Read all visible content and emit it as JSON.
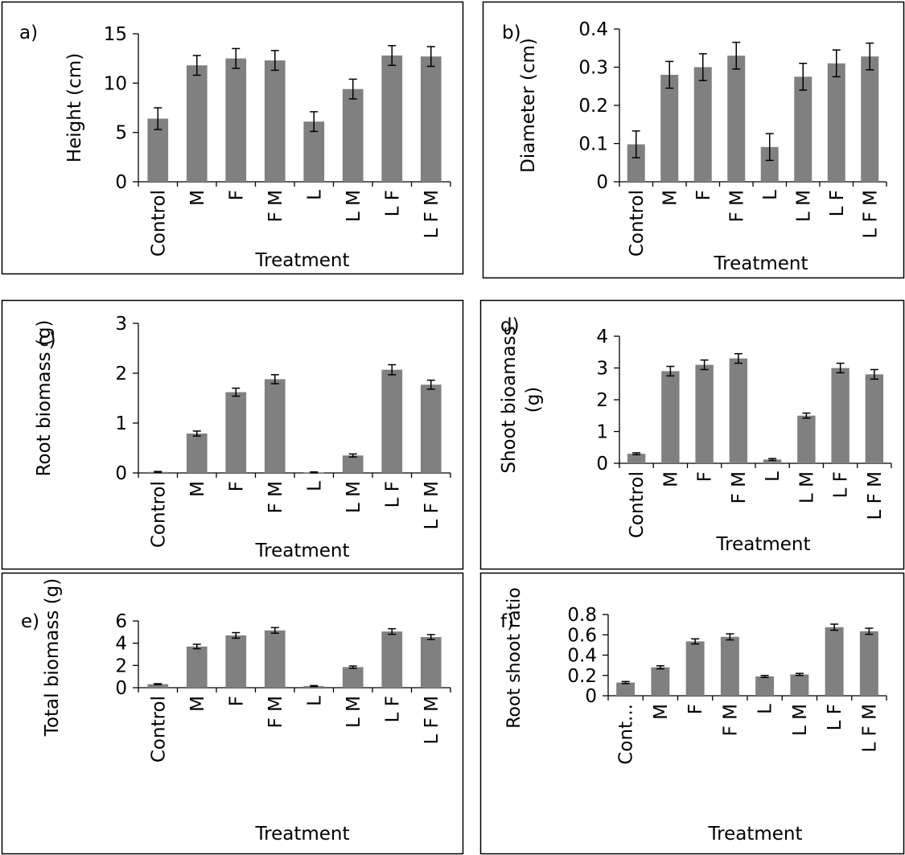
{
  "chart_data": [
    {
      "type": "bar",
      "panel_label": "a)",
      "categories": [
        "Control",
        "M",
        "F",
        "F M",
        "L",
        "L M",
        "L F",
        "L F M"
      ],
      "values": [
        6.4,
        11.8,
        12.5,
        12.3,
        6.1,
        9.4,
        12.8,
        12.7
      ],
      "errors": [
        1.1,
        1.0,
        1.0,
        1.0,
        1.0,
        1.0,
        1.0,
        1.0
      ],
      "ylabel": "Height (cm)",
      "xlabel": "Treatment",
      "ylim": [
        0,
        15
      ],
      "yticks": [
        "0",
        "5",
        "10",
        "15"
      ],
      "ytick_values": [
        0,
        5,
        10,
        15
      ],
      "bar_color": "#808080",
      "grid": false
    },
    {
      "type": "bar",
      "panel_label": "b)",
      "categories": [
        "Control",
        "M",
        "F",
        "F M",
        "L",
        "L M",
        "L F",
        "L F M"
      ],
      "values": [
        0.098,
        0.28,
        0.3,
        0.33,
        0.091,
        0.275,
        0.31,
        0.328
      ],
      "errors": [
        0.035,
        0.035,
        0.035,
        0.035,
        0.035,
        0.035,
        0.035,
        0.035
      ],
      "ylabel": "Diameter (cm)",
      "xlabel": "Treatment",
      "ylim": [
        0,
        0.4
      ],
      "yticks": [
        "0",
        "0.1",
        "0.2",
        "0.3",
        "0.4"
      ],
      "ytick_values": [
        0,
        0.1,
        0.2,
        0.3,
        0.4
      ],
      "bar_color": "#808080",
      "grid": false
    },
    {
      "type": "bar",
      "panel_label": "c)",
      "categories": [
        "Control",
        "M",
        "F",
        "F M",
        "L",
        "L M",
        "L F",
        "L F M"
      ],
      "values": [
        0.02,
        0.79,
        1.62,
        1.88,
        0.01,
        0.35,
        2.07,
        1.77
      ],
      "errors": [
        0.01,
        0.05,
        0.08,
        0.09,
        0.01,
        0.03,
        0.1,
        0.09
      ],
      "ylabel": "Root biomass (g)",
      "xlabel": "Treatment",
      "ylim": [
        0,
        3
      ],
      "yticks": [
        "0",
        "1",
        "2",
        "3"
      ],
      "ytick_values": [
        0,
        1,
        2,
        3
      ],
      "bar_color": "#808080",
      "grid": false
    },
    {
      "type": "bar",
      "panel_label": "d)",
      "categories": [
        "Control",
        "M",
        "F",
        "F M",
        "L",
        "L M",
        "L F",
        "L F M"
      ],
      "values": [
        0.3,
        2.9,
        3.1,
        3.3,
        0.12,
        1.5,
        3.0,
        2.8
      ],
      "errors": [
        0.03,
        0.15,
        0.15,
        0.15,
        0.03,
        0.08,
        0.15,
        0.15
      ],
      "ylabel": "Shoot bioamass (g)",
      "ylabel_lines": [
        "Shoot bioamass",
        "(g)"
      ],
      "xlabel": "Treatment",
      "ylim": [
        0,
        4
      ],
      "yticks": [
        "0",
        "1",
        "2",
        "3",
        "4"
      ],
      "ytick_values": [
        0,
        1,
        2,
        3,
        4
      ],
      "bar_color": "#808080",
      "grid": false
    },
    {
      "type": "bar",
      "panel_label": "e)",
      "categories": [
        "Control",
        "M",
        "F",
        "F M",
        "L",
        "L M",
        "L F",
        "L F M"
      ],
      "values": [
        0.32,
        3.7,
        4.7,
        5.15,
        0.15,
        1.85,
        5.05,
        4.55
      ],
      "errors": [
        0.04,
        0.2,
        0.25,
        0.25,
        0.04,
        0.1,
        0.25,
        0.22
      ],
      "ylabel": "Total biomass (g)",
      "xlabel": "Treatment",
      "ylim": [
        0,
        6
      ],
      "yticks": [
        "0",
        "2",
        "4",
        "6"
      ],
      "ytick_values": [
        0,
        2,
        4,
        6
      ],
      "bar_color": "#808080",
      "grid": false
    },
    {
      "type": "bar",
      "panel_label": "f)",
      "categories": [
        "Cont...",
        "M",
        "F",
        "F M",
        "L",
        "L M",
        "L F",
        "L F M"
      ],
      "values": [
        0.13,
        0.28,
        0.535,
        0.58,
        0.19,
        0.21,
        0.675,
        0.635
      ],
      "errors": [
        0.01,
        0.015,
        0.025,
        0.03,
        0.01,
        0.01,
        0.03,
        0.03
      ],
      "ylabel": "Root shoot ratio",
      "xlabel": "Treatment",
      "ylim": [
        0,
        0.8
      ],
      "yticks": [
        "0",
        "0.2",
        "0.4",
        "0.6",
        "0.8"
      ],
      "ytick_values": [
        0,
        0.2,
        0.4,
        0.6,
        0.8
      ],
      "bar_color": "#808080",
      "grid": false
    }
  ]
}
